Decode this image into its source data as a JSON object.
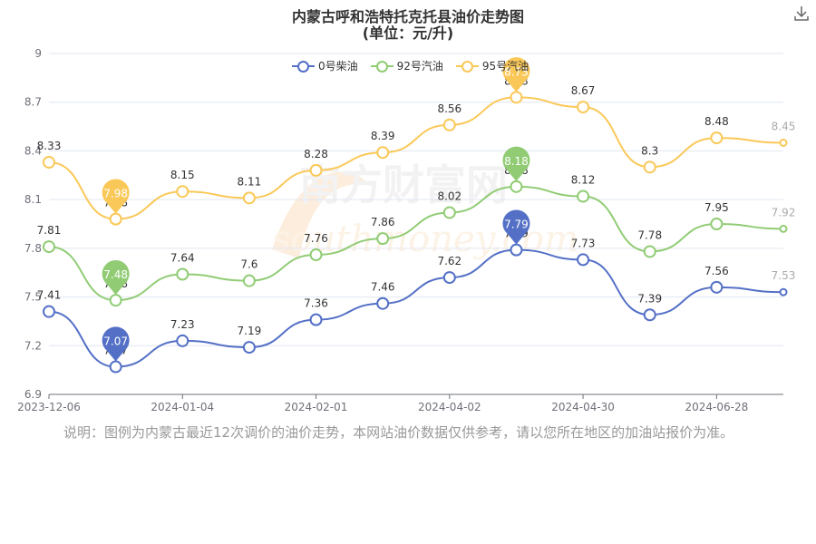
{
  "title": "内蒙古呼和浩特托克托县油价走势图",
  "subtitle": "(单位：元/升)",
  "note": "说明：图例为内蒙古最近12次调价的油价走势，本网站油价数据仅供参考，请以您所在地区的加油站报价为准。",
  "watermark": {
    "cn": "南方财富网",
    "en": "southmoney.com"
  },
  "icons": {
    "download": "download-icon"
  },
  "chart_data": {
    "type": "line",
    "smooth": true,
    "x_tick_labels": [
      "2023-12-06",
      "2024-01-04",
      "2024-02-01",
      "2024-04-02",
      "2024-04-30",
      "2024-06-28"
    ],
    "y_ticks": [
      6.9,
      7.2,
      7.5,
      7.8,
      8.1,
      8.4,
      8.7,
      9
    ],
    "ylim": [
      6.9,
      9
    ],
    "grid": true,
    "legend_position": "top-center",
    "series": [
      {
        "name": "0号柴油",
        "color": "#5470c6",
        "values": [
          7.41,
          7.07,
          7.23,
          7.19,
          7.36,
          7.46,
          7.62,
          7.79,
          7.73,
          7.39,
          7.56,
          7.53
        ],
        "min_index": 1,
        "max_index": 7
      },
      {
        "name": "92号汽油",
        "color": "#91cc75",
        "values": [
          7.81,
          7.48,
          7.64,
          7.6,
          7.76,
          7.86,
          8.02,
          8.18,
          8.12,
          7.78,
          7.95,
          7.92
        ],
        "min_index": 1,
        "max_index": 7
      },
      {
        "name": "95号汽油",
        "color": "#fac858",
        "values": [
          8.33,
          7.98,
          8.15,
          8.11,
          8.28,
          8.39,
          8.56,
          8.73,
          8.67,
          8.3,
          8.48,
          8.45
        ],
        "min_index": 1,
        "max_index": 7
      }
    ]
  }
}
